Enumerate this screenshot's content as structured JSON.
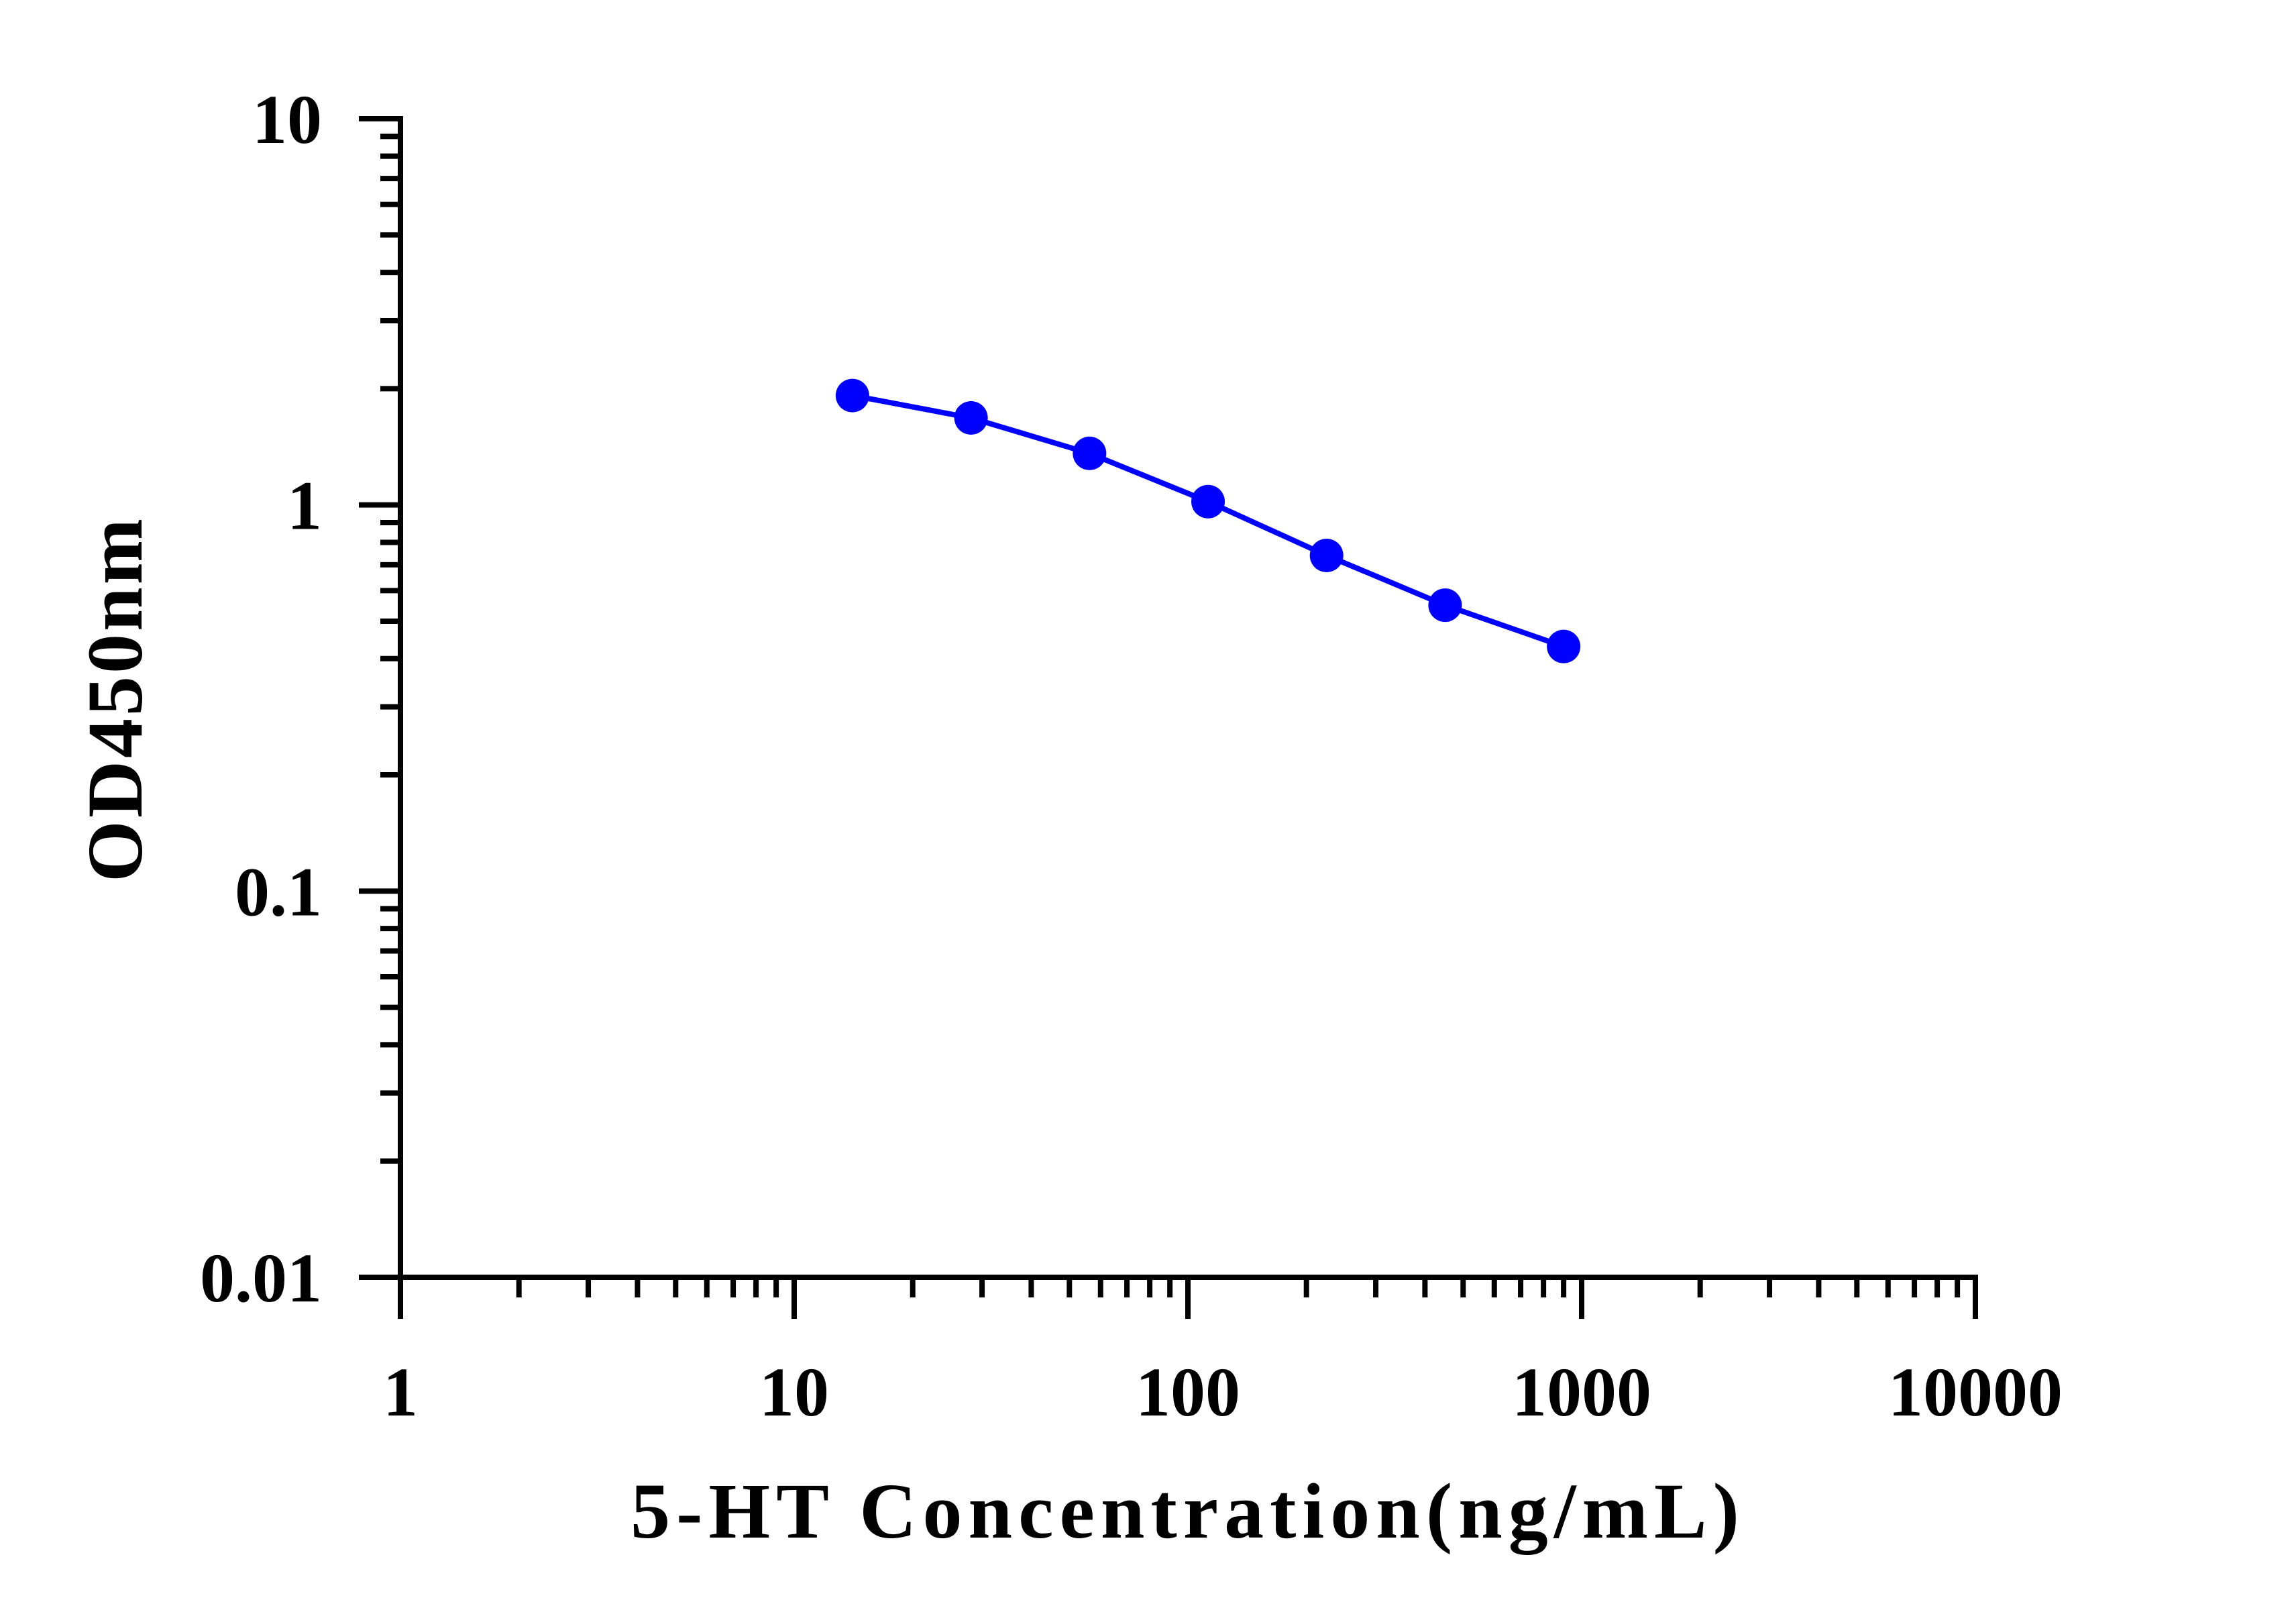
{
  "chart_data": {
    "type": "line",
    "title": "",
    "xlabel": "5-HT Concentration(ng/mL)",
    "ylabel": "OD450nm",
    "x_scale": "log",
    "y_scale": "log",
    "xlim": [
      1,
      10000
    ],
    "ylim": [
      0.01,
      10
    ],
    "x_tick_labels": [
      "1",
      "10",
      "100",
      "1000",
      "10000"
    ],
    "y_tick_labels": [
      "0.01",
      "0.1",
      "1",
      "10"
    ],
    "grid": false,
    "legend": "none",
    "series": [
      {
        "color": "#0000ff",
        "marker": "circle",
        "points": [
          {
            "x": 14.06,
            "y": 1.92
          },
          {
            "x": 28.13,
            "y": 1.68
          },
          {
            "x": 56.25,
            "y": 1.36
          },
          {
            "x": 112.5,
            "y": 1.02
          },
          {
            "x": 225,
            "y": 0.74
          },
          {
            "x": 450,
            "y": 0.55
          },
          {
            "x": 900,
            "y": 0.43
          }
        ]
      }
    ]
  }
}
